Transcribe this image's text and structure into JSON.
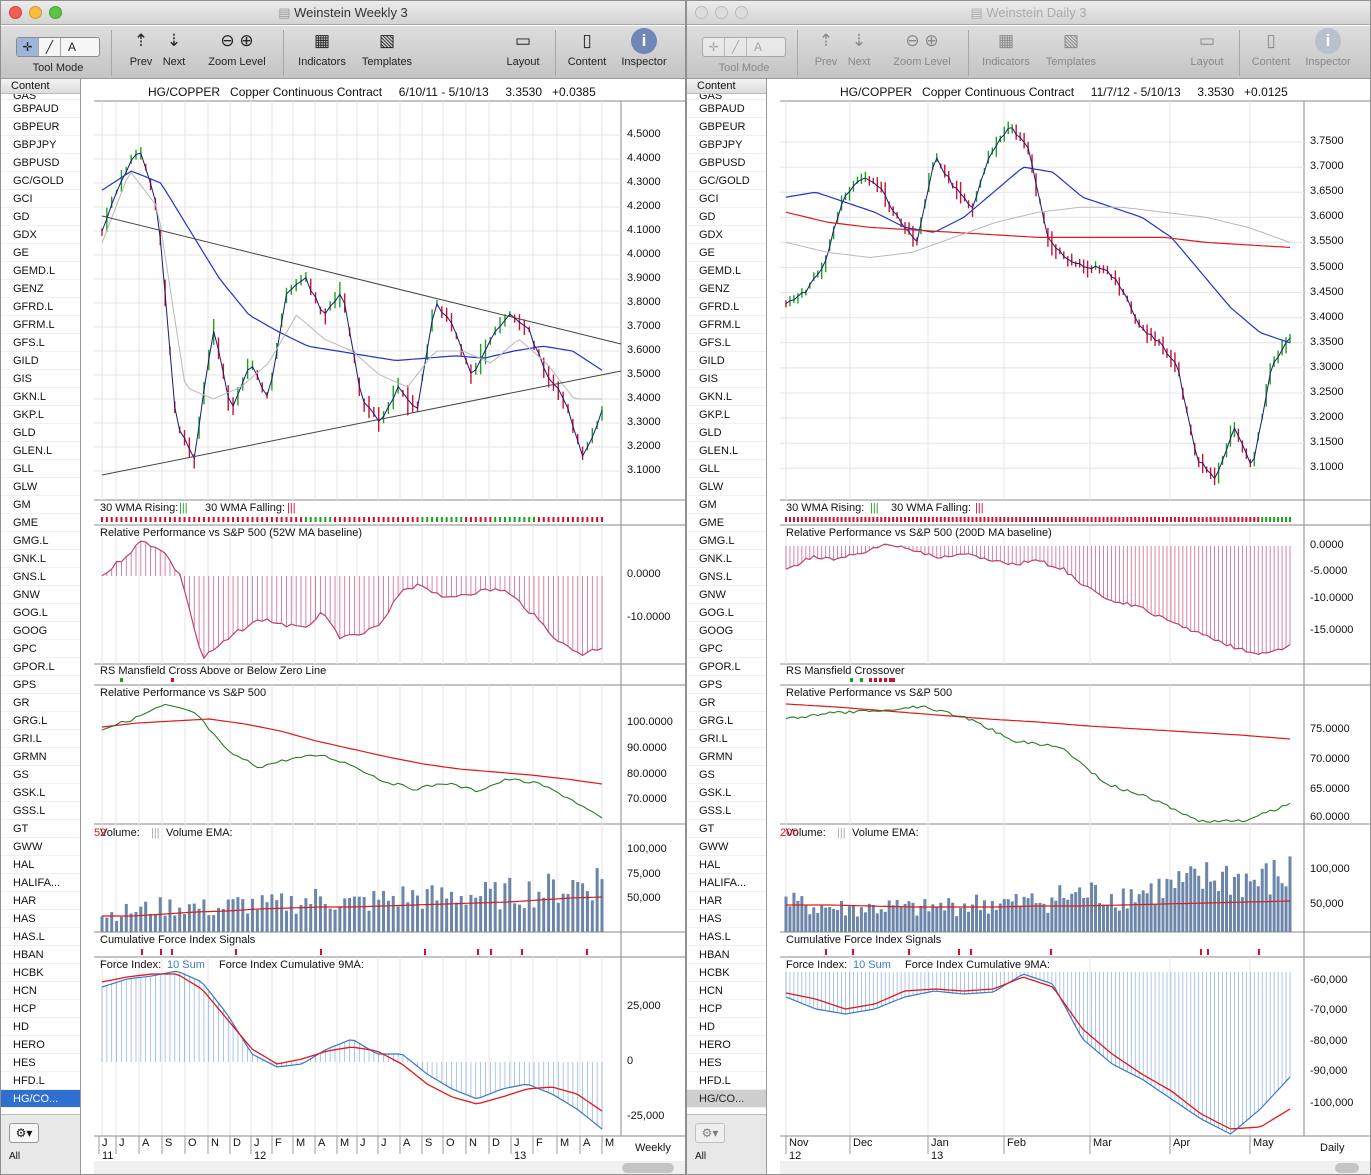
{
  "weekly": {
    "title": "Weinstein Weekly 3",
    "toolbar": {
      "tool_mode": "Tool Mode",
      "prev": "Prev",
      "next": "Next",
      "zoom_level": "Zoom  Level",
      "indicators": "Indicators",
      "templates": "Templates",
      "layout": "Layout",
      "content": "Content",
      "inspector": "Inspector",
      "tool_buttons": [
        "✛",
        "╱",
        "A"
      ]
    },
    "header": {
      "symbol": "HG/COPPER",
      "name": "Copper Continuous Contract",
      "range": "6/10/11 - 5/10/13",
      "last": "3.3530",
      "change": "+0.0385"
    },
    "periodicity": "Weekly",
    "price_ticks": [
      "4.5000",
      "4.4000",
      "4.3000",
      "4.2000",
      "4.1000",
      "4.0000",
      "3.9000",
      "3.8000",
      "3.7000",
      "3.6000",
      "3.5000",
      "3.4000",
      "3.3000",
      "3.2000",
      "3.1000"
    ],
    "panels": {
      "wma": {
        "rising": "30 WMA Rising:",
        "rising_mark": "|||",
        "falling": "30 WMA Falling:",
        "falling_mark": "|||"
      },
      "rp": {
        "label": "Relative Performance vs S&P 500 (52W MA baseline)",
        "ticks": [
          "0.0000",
          "-10.0000"
        ]
      },
      "rsm": {
        "label": "RS Mansfield Cross Above or Below Zero Line"
      },
      "rps": {
        "label": "Relative Performance vs S&P 500",
        "ticks": [
          "100.0000",
          "90.0000",
          "80.0000",
          "70.0000"
        ]
      },
      "vol": {
        "label": "Volume:",
        "mark": "|||",
        "ema": "Volume EMA:",
        "ema_val": "52",
        "ticks": [
          "100,000",
          "75,000",
          "50,000"
        ]
      },
      "cfi": {
        "label": "Cumulative Force Index Signals"
      },
      "fi": {
        "label": "Force Index:",
        "sum": "10 Sum",
        "ma": "Force Index Cumulative 9MA:",
        "ticks": [
          "25,000",
          "0",
          "-25,000"
        ]
      }
    },
    "x_months": [
      "J",
      "J",
      "A",
      "S",
      "O",
      "N",
      "D",
      "J",
      "F",
      "M",
      "A",
      "M",
      "J",
      "J",
      "A",
      "S",
      "O",
      "N",
      "D",
      "J",
      "F",
      "M",
      "A",
      "M"
    ],
    "x_years": [
      "11",
      "12",
      "13"
    ]
  },
  "daily": {
    "title": "Weinstein Daily 3",
    "toolbar": {
      "tool_mode": "Tool Mode",
      "prev": "Prev",
      "next": "Next",
      "zoom_level": "Zoom  Level",
      "indicators": "Indicators",
      "templates": "Templates",
      "layout": "Layout",
      "content": "Content",
      "inspector": "Inspector",
      "tool_buttons": [
        "✛",
        "╱",
        "A"
      ]
    },
    "header": {
      "symbol": "HG/COPPER",
      "name": "Copper Continuous Contract",
      "range": "11/7/12 - 5/10/13",
      "last": "3.3530",
      "change": "+0.0125"
    },
    "periodicity": "Daily",
    "price_ticks": [
      "3.7500",
      "3.7000",
      "3.6500",
      "3.6000",
      "3.5500",
      "3.5000",
      "3.4500",
      "3.4000",
      "3.3500",
      "3.3000",
      "3.2500",
      "3.2000",
      "3.1500",
      "3.1000"
    ],
    "panels": {
      "wma": {
        "rising": "30 WMA Rising:",
        "rising_mark": "|||",
        "falling": "30 WMA Falling:",
        "falling_mark": "|||"
      },
      "rp": {
        "label": "Relative Performance vs S&P 500 (200D MA baseline)",
        "ticks": [
          "0.0000",
          "-5.0000",
          "-10.0000",
          "-15.0000"
        ]
      },
      "rsm": {
        "label": "RS Mansfield Crossover"
      },
      "rps": {
        "label": "Relative Performance vs S&P 500",
        "ticks": [
          "75.0000",
          "70.0000",
          "65.0000",
          "60.0000"
        ]
      },
      "vol": {
        "label": "Volume:",
        "mark": "|||",
        "ema": "Volume EMA:",
        "ema_val": "200",
        "ticks": [
          "100,000",
          "50,000"
        ]
      },
      "cfi": {
        "label": "Cumulative Force Index Signals"
      },
      "fi": {
        "label": "Force Index:",
        "sum": "10 Sum",
        "ma": "Force Index Cumulative 9MA:",
        "ticks": [
          "-60,000",
          "-70,000",
          "-80,000",
          "-90,000",
          "-100,000"
        ]
      }
    },
    "x_months": [
      "Nov",
      "Dec",
      "Jan",
      "Feb",
      "Mar",
      "Apr",
      "May"
    ],
    "x_years": [
      "12",
      "13"
    ]
  },
  "symbols": {
    "header": "Content",
    "first_partial": "GAS",
    "items": [
      "GBPAUD",
      "GBPEUR",
      "GBPJPY",
      "GBPUSD",
      "GC/GOLD",
      "GCI",
      "GD",
      "GDX",
      "GE",
      "GEMD.L",
      "GENZ",
      "GFRD.L",
      "GFRM.L",
      "GFS.L",
      "GILD",
      "GIS",
      "GKN.L",
      "GKP.L",
      "GLD",
      "GLEN.L",
      "GLL",
      "GLW",
      "GM",
      "GME",
      "GMG.L",
      "GNK.L",
      "GNS.L",
      "GNW",
      "GOG.L",
      "GOOG",
      "GPC",
      "GPOR.L",
      "GPS",
      "GR",
      "GRG.L",
      "GRI.L",
      "GRMN",
      "GS",
      "GSK.L",
      "GSS.L",
      "GT",
      "GWW",
      "HAL",
      "HALIFA...",
      "HAR",
      "HAS",
      "HAS.L",
      "HBAN",
      "HCBK",
      "HCN",
      "HCP",
      "HD",
      "HERO",
      "HES",
      "HFD.L",
      "HG/CO..."
    ],
    "selected": "HG/CO...",
    "footer_all": "All"
  },
  "colors": {
    "up": "#1aa31a",
    "down": "#d0102c",
    "bar": "#1a1a7a",
    "ma_blue": "#2233c8",
    "ma_red": "#e01818",
    "ma_gray": "#b8b8b8",
    "hist": "#c0406a",
    "fi": "#3a78c8"
  }
}
